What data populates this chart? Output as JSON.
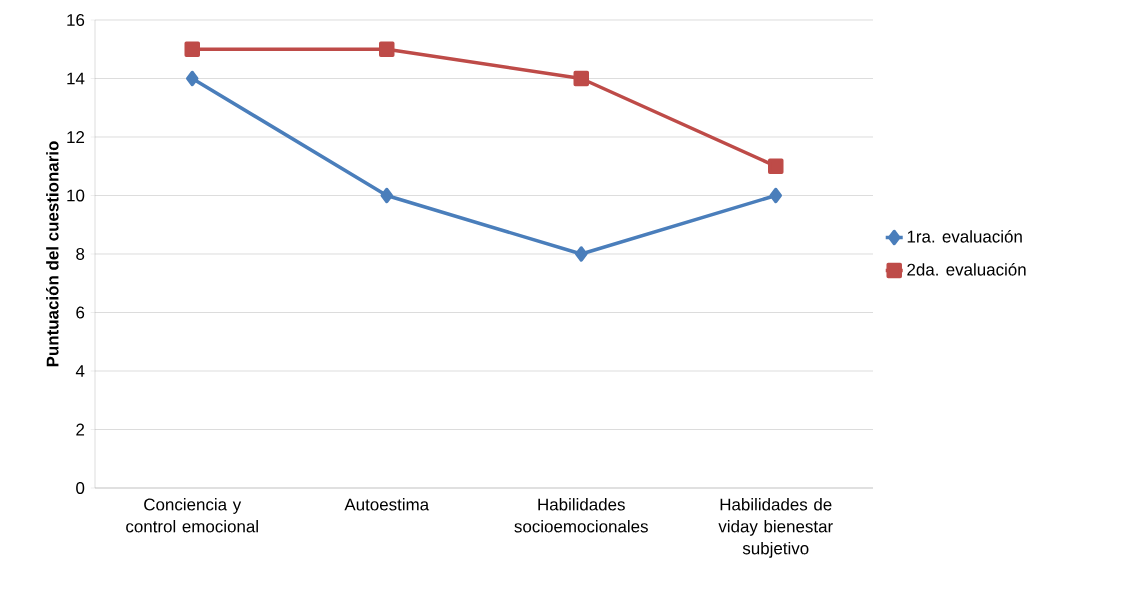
{
  "chart_data": {
    "type": "line",
    "ylabel": "Puntuación del cuestionario",
    "categories": [
      "Conciencia y control emocional",
      "Autoestima",
      "Habilidades socioemocionales",
      "Habilidades de viday bienestar subjetivo"
    ],
    "series": [
      {
        "name": "1ra. evaluación",
        "color": "#4a7ebb",
        "marker": "diamond",
        "values": [
          14,
          10,
          8,
          10
        ]
      },
      {
        "name": "2da. evaluación",
        "color": "#be4b48",
        "marker": "square",
        "values": [
          15,
          15,
          14,
          11
        ]
      }
    ],
    "ylim": [
      0,
      16
    ],
    "yticks": [
      0,
      2,
      4,
      6,
      8,
      10,
      12,
      14,
      16
    ],
    "grid": "y",
    "legend": "right",
    "line_style": "solid"
  }
}
